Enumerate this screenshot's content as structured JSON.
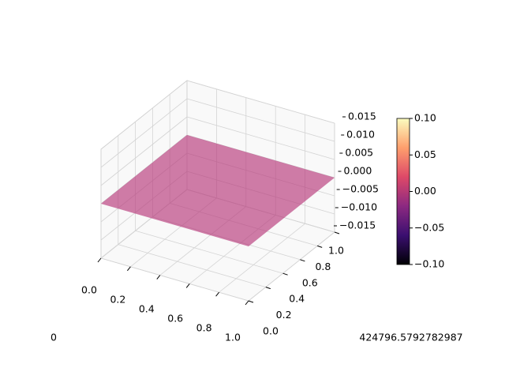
{
  "chart_data": {
    "type": "surface",
    "x": [
      0,
      1
    ],
    "y": [
      0,
      1
    ],
    "z": [
      [
        0,
        0
      ],
      [
        0,
        0
      ]
    ],
    "color": "#b73779",
    "alpha": 0.65,
    "xlim": [
      0,
      1
    ],
    "ylim": [
      0,
      1
    ],
    "zlim": [
      -0.015,
      0.015
    ],
    "xticks": [
      {
        "value": 0,
        "label": "0.0"
      },
      {
        "value": 0.2,
        "label": "0.2"
      },
      {
        "value": 0.4,
        "label": "0.4"
      },
      {
        "value": 0.6,
        "label": "0.6"
      },
      {
        "value": 0.8,
        "label": "0.8"
      },
      {
        "value": 1,
        "label": "1.0"
      }
    ],
    "yticks": [
      {
        "value": 0,
        "label": "0.0"
      },
      {
        "value": 0.2,
        "label": "0.2"
      },
      {
        "value": 0.4,
        "label": "0.4"
      },
      {
        "value": 0.6,
        "label": "0.6"
      },
      {
        "value": 0.8,
        "label": "0.8"
      },
      {
        "value": 1,
        "label": "1.0"
      }
    ],
    "zticks": [
      0.015,
      {
        "value": 0.01,
        "label": "0.010"
      },
      0.005,
      {
        "value": 0,
        "label": "0.000"
      },
      {
        "value": -0.005,
        "label": "−0.005"
      },
      {
        "value": -0.01,
        "label": "−0.010"
      },
      {
        "value": -0.015,
        "label": "−0.015"
      }
    ],
    "grid": true,
    "colorbar": {
      "cmap": "magma",
      "lim": [
        -0.1,
        0.1
      ],
      "ticks": [
        {
          "value": 0.1,
          "label": "0.10"
        },
        {
          "value": 0.05,
          "label": "0.05"
        },
        {
          "value": 0,
          "label": "0.00"
        },
        {
          "value": -0.05,
          "label": "−0.05"
        },
        {
          "value": -0.1,
          "label": "−0.10"
        }
      ]
    },
    "annotations": [
      "0",
      "424796.5792782987"
    ]
  }
}
